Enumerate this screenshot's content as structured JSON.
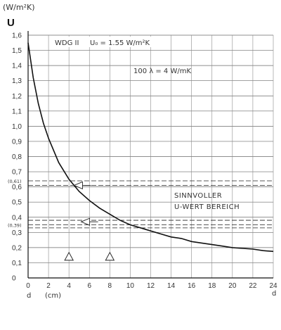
{
  "chart_data": {
    "type": "line",
    "unit_label": "(W/m²K)",
    "ylabel": "U",
    "xlabel": "d",
    "xunit": "(cm)",
    "xlabel_right": "d",
    "xlim": [
      0,
      24
    ],
    "ylim": [
      0,
      1.6
    ],
    "grid": true,
    "x_ticks": [
      0,
      2,
      4,
      6,
      8,
      10,
      12,
      14,
      16,
      18,
      20,
      22,
      24
    ],
    "y_ticks": [
      "0",
      "0,1",
      "0,2",
      "0,3",
      "0,4",
      "0,5",
      "0,6",
      "0,7",
      "0,8",
      "0,9",
      "1,0",
      "1,1",
      "1,2",
      "1,3",
      "1,4",
      "1,5",
      "1,6"
    ],
    "y_tick_values": [
      0,
      0.1,
      0.2,
      0.3,
      0.4,
      0.5,
      0.6,
      0.7,
      0.8,
      0.9,
      1.0,
      1.1,
      1.2,
      1.3,
      1.4,
      1.5,
      1.6
    ],
    "series": [
      {
        "x": [
          0,
          0.5,
          1,
          1.5,
          2,
          3,
          4,
          5,
          6,
          7,
          8,
          9,
          10,
          11,
          12,
          13,
          14,
          15,
          16,
          17,
          18,
          19,
          20,
          21,
          22,
          23,
          24
        ],
        "y": [
          1.55,
          1.32,
          1.15,
          1.02,
          0.92,
          0.76,
          0.65,
          0.57,
          0.51,
          0.46,
          0.42,
          0.38,
          0.35,
          0.33,
          0.31,
          0.29,
          0.27,
          0.26,
          0.24,
          0.23,
          0.22,
          0.21,
          0.2,
          0.195,
          0.19,
          0.18,
          0.175
        ]
      }
    ],
    "reference_lines": [
      {
        "y": 0.64,
        "label": "(0,61)"
      },
      {
        "y": 0.61,
        "label": ""
      },
      {
        "y": 0.38,
        "label": ""
      },
      {
        "y": 0.35,
        "label": "(0,39)"
      },
      {
        "y": 0.33,
        "label": ""
      }
    ],
    "arrows": [
      {
        "x": 4.5,
        "y": 0.61
      },
      {
        "x": 5.2,
        "y": 0.37
      }
    ],
    "triangles": [
      {
        "x": 4,
        "y": 0.14
      },
      {
        "x": 8,
        "y": 0.14
      }
    ],
    "annotations": {
      "wdg": "WDG II",
      "u0": "U₀ = 1.55 W/m²K",
      "lambda": "100 λ = 4 W/mK",
      "range_line1": "SINNVOLLER",
      "range_line2": "U-WERT BEREICH"
    }
  }
}
